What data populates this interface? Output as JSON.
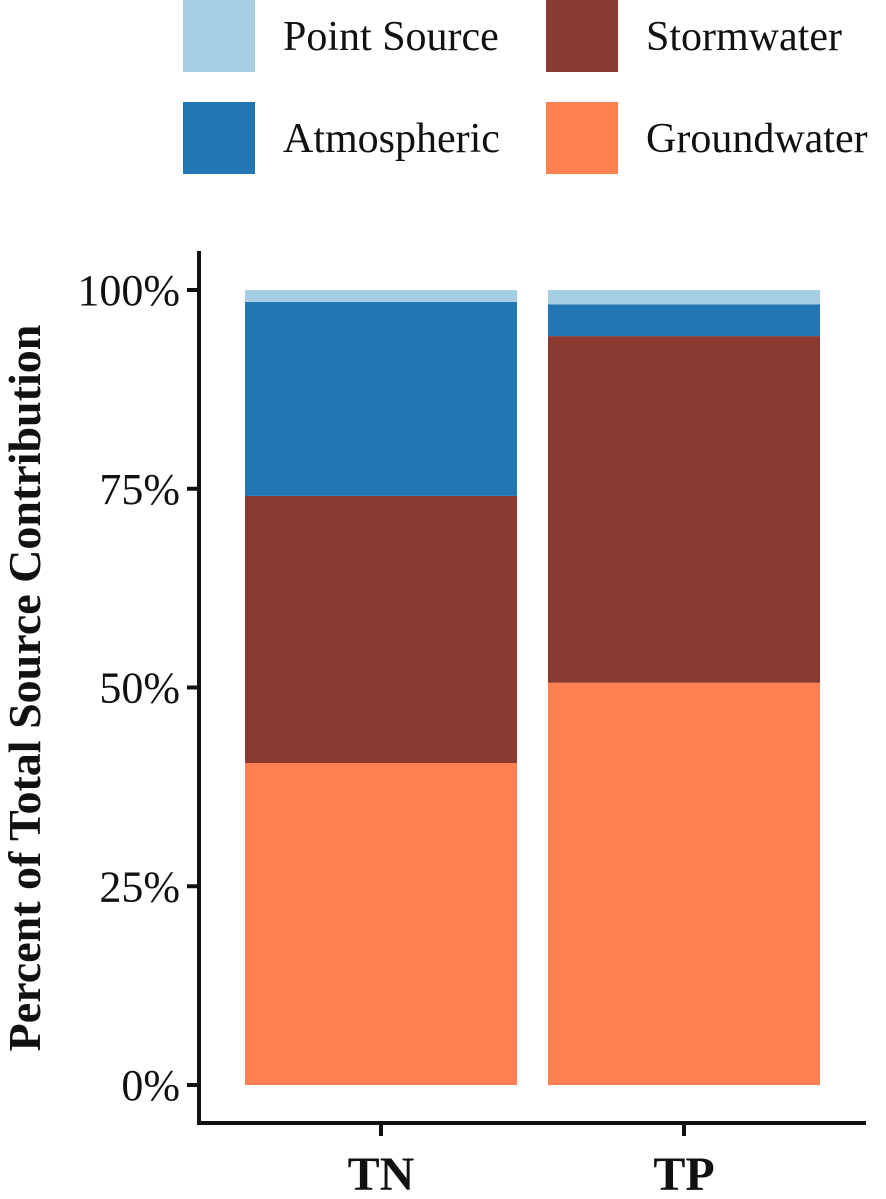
{
  "chart_data": {
    "type": "bar",
    "stacked": true,
    "normalized": true,
    "title": "",
    "xlabel": "",
    "ylabel": "Percent of Total Source Contribution",
    "ylim": [
      0,
      100
    ],
    "yticks": [
      0,
      25,
      50,
      75,
      100
    ],
    "ytick_labels": [
      "0%",
      "25%",
      "50%",
      "75%",
      "100%"
    ],
    "categories": [
      "TN",
      "TP"
    ],
    "series": [
      {
        "name": "Groundwater",
        "color": "#FF7F50",
        "values": [
          40.5,
          50.6
        ]
      },
      {
        "name": "Stormwater",
        "color": "#8B3A32",
        "values": [
          33.6,
          43.6
        ]
      },
      {
        "name": "Atmospheric",
        "color": "#2276B4",
        "values": [
          24.4,
          4.0
        ]
      },
      {
        "name": "Point Source",
        "color": "#A6CEE3",
        "values": [
          1.5,
          1.8
        ]
      }
    ],
    "legend": {
      "placement": "top",
      "entries": [
        "Point Source",
        "Stormwater",
        "Atmospheric",
        "Groundwater"
      ]
    },
    "grid": false
  }
}
